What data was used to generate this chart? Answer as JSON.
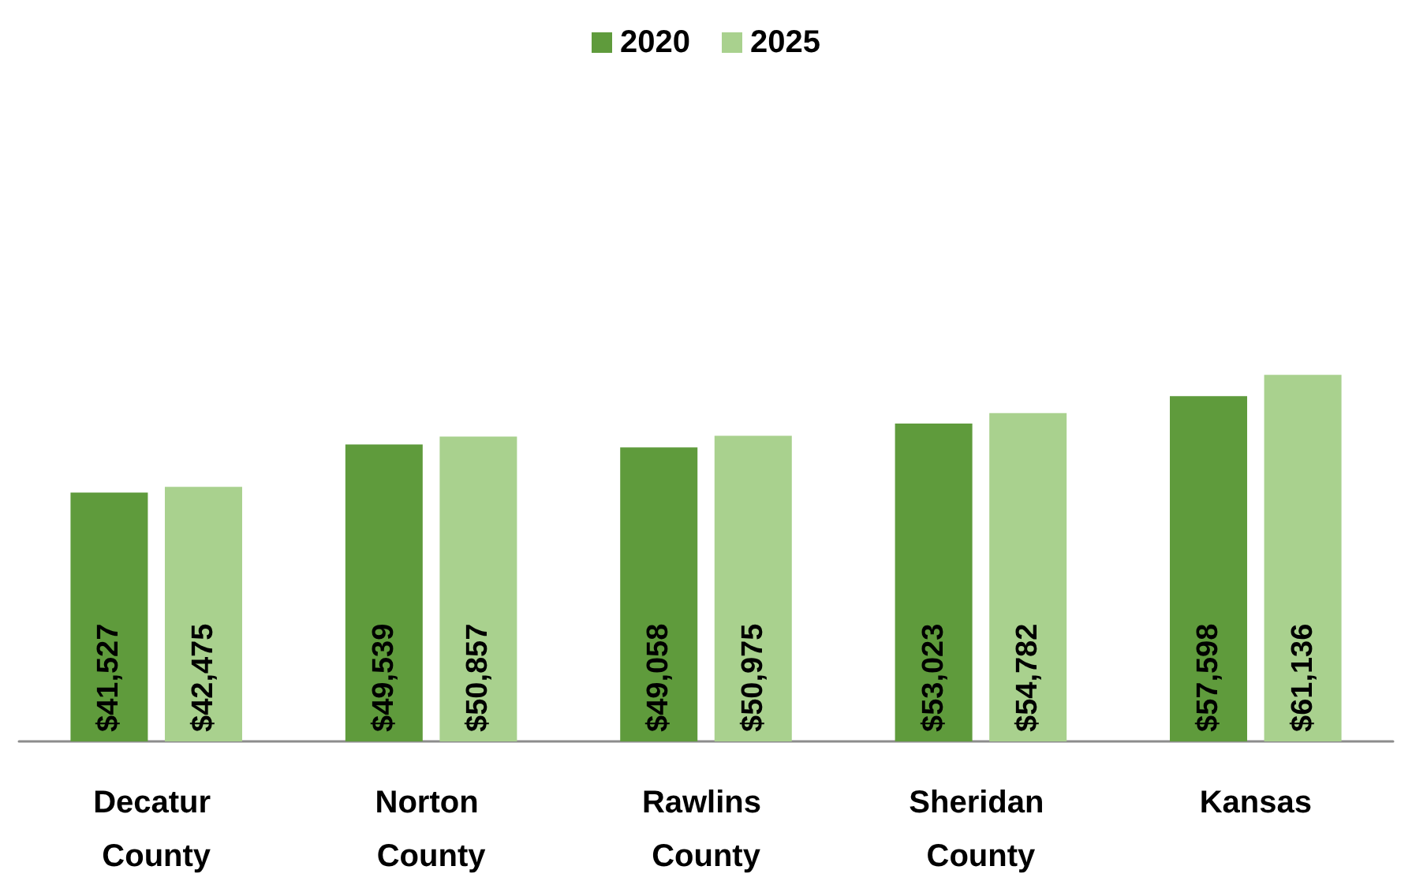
{
  "chart_data": {
    "type": "bar",
    "categories": [
      "Decatur County",
      "Norton County",
      "Rawlins County",
      "Sheridan County",
      "Kansas"
    ],
    "series": [
      {
        "name": "2020",
        "color": "#5f9b3c",
        "values": [
          41527,
          49539,
          49058,
          53023,
          57598
        ],
        "value_labels": [
          "$41,527",
          "$49,539",
          "$49,058",
          "$53,023",
          "$57,598"
        ]
      },
      {
        "name": "2025",
        "color": "#a9d18e",
        "values": [
          42475,
          50857,
          50975,
          54782,
          61136
        ],
        "value_labels": [
          "$42,475",
          "$50,857",
          "$50,975",
          "$54,782",
          "$61,136"
        ]
      }
    ],
    "legend": "top",
    "tick_labels": "x"
  }
}
